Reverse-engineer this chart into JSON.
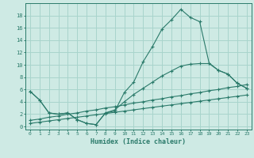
{
  "xlabel": "Humidex (Indice chaleur)",
  "x_values": [
    0,
    1,
    2,
    3,
    4,
    5,
    6,
    7,
    8,
    9,
    10,
    11,
    12,
    13,
    14,
    15,
    16,
    17,
    18,
    19,
    20,
    21,
    22,
    23
  ],
  "line1": [
    5.7,
    4.3,
    2.2,
    2.0,
    2.2,
    1.1,
    0.5,
    0.3,
    2.2,
    2.5,
    5.5,
    7.2,
    10.5,
    13.0,
    15.8,
    17.3,
    19.0,
    17.7,
    17.0,
    10.3,
    9.1,
    8.5,
    7.0,
    6.2
  ],
  "line2": [
    5.7,
    4.3,
    2.2,
    2.0,
    2.2,
    1.1,
    0.5,
    0.3,
    2.2,
    2.7,
    4.0,
    5.2,
    6.2,
    7.2,
    8.2,
    9.0,
    9.8,
    10.1,
    10.2,
    10.2,
    9.1,
    8.5,
    7.0,
    6.2
  ],
  "line3": [
    1.0,
    1.2,
    1.5,
    1.7,
    2.0,
    2.2,
    2.5,
    2.7,
    3.0,
    3.2,
    3.5,
    3.8,
    4.0,
    4.3,
    4.5,
    4.8,
    5.0,
    5.3,
    5.5,
    5.8,
    6.0,
    6.3,
    6.5,
    6.8
  ],
  "line4": [
    0.5,
    0.7,
    0.9,
    1.1,
    1.3,
    1.5,
    1.7,
    1.9,
    2.1,
    2.3,
    2.5,
    2.7,
    2.9,
    3.1,
    3.3,
    3.5,
    3.7,
    3.9,
    4.1,
    4.3,
    4.5,
    4.7,
    4.9,
    5.1
  ],
  "line_color": "#2a7a6a",
  "bg_color": "#ceeae4",
  "grid_color": "#a8d4cc",
  "ylim": [
    -0.5,
    20
  ],
  "yticks": [
    0,
    2,
    4,
    6,
    8,
    10,
    12,
    14,
    16,
    18
  ],
  "xticks": [
    0,
    1,
    2,
    3,
    4,
    5,
    6,
    7,
    8,
    9,
    10,
    11,
    12,
    13,
    14,
    15,
    16,
    17,
    18,
    19,
    20,
    21,
    22,
    23
  ]
}
